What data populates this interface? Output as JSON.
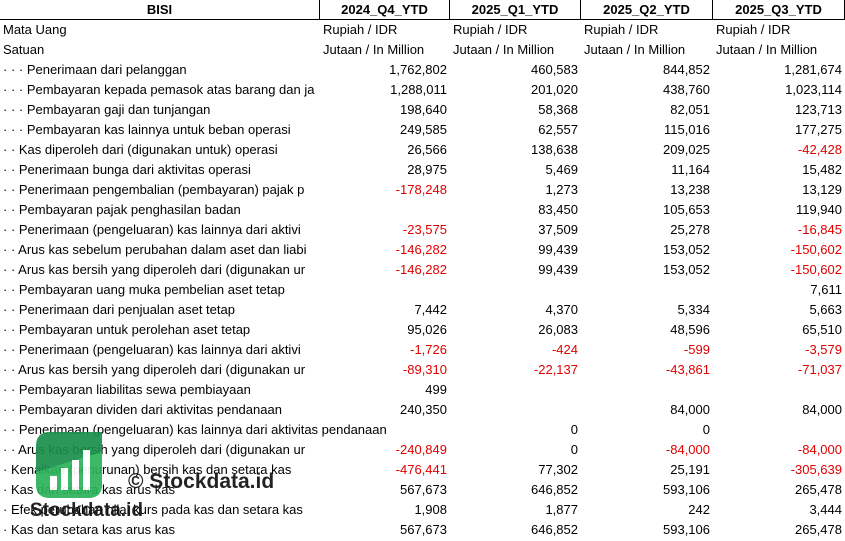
{
  "table": {
    "header": [
      "BISI",
      "2024_Q4_YTD",
      "2025_Q1_YTD",
      "2025_Q2_YTD",
      "2025_Q3_YTD"
    ],
    "meta_rows": [
      [
        "Mata Uang",
        "Rupiah / IDR",
        "Rupiah / IDR",
        "Rupiah / IDR",
        "Rupiah / IDR"
      ],
      [
        "Satuan",
        "Jutaan / In Million",
        "Jutaan / In Million",
        "Jutaan / In Million",
        "Jutaan / In Million"
      ]
    ],
    "rows": [
      [
        "· · · Penerimaan dari pelanggan",
        "1,762,802",
        "460,583",
        "844,852",
        "1,281,674"
      ],
      [
        "· · · Pembayaran kepada pemasok atas barang dan ja",
        "1,288,011",
        "201,020",
        "438,760",
        "1,023,114"
      ],
      [
        "· · · Pembayaran gaji dan tunjangan",
        "198,640",
        "58,368",
        "82,051",
        "123,713"
      ],
      [
        "· · · Pembayaran kas lainnya untuk beban operasi",
        "249,585",
        "62,557",
        "115,016",
        "177,275"
      ],
      [
        "· · Kas diperoleh dari (digunakan untuk) operasi",
        "26,566",
        "138,638",
        "209,025",
        "-42,428"
      ],
      [
        "· · Penerimaan bunga dari aktivitas operasi",
        "28,975",
        "5,469",
        "11,164",
        "15,482"
      ],
      [
        "· · Penerimaan pengembalian (pembayaran) pajak p",
        "-178,248",
        "1,273",
        "13,238",
        "13,129"
      ],
      [
        "· · Pembayaran pajak penghasilan badan",
        null,
        "83,450",
        "105,653",
        "119,940"
      ],
      [
        "· · Penerimaan (pengeluaran) kas lainnya dari aktivi",
        "-23,575",
        "37,509",
        "25,278",
        "-16,845"
      ],
      [
        "· · Arus kas sebelum perubahan dalam aset dan liabi",
        "-146,282",
        "99,439",
        "153,052",
        "-150,602"
      ],
      [
        "· · Arus kas bersih yang diperoleh dari (digunakan ur",
        "-146,282",
        "99,439",
        "153,052",
        "-150,602"
      ],
      [
        "· · Pembayaran uang muka pembelian aset tetap",
        null,
        null,
        null,
        "7,611"
      ],
      [
        "· · Penerimaan dari penjualan aset tetap",
        "7,442",
        "4,370",
        "5,334",
        "5,663"
      ],
      [
        "· · Pembayaran untuk perolehan aset tetap",
        "95,026",
        "26,083",
        "48,596",
        "65,510"
      ],
      [
        "· · Penerimaan (pengeluaran) kas lainnya dari aktivi",
        "-1,726",
        "-424",
        "-599",
        "-3,579"
      ],
      [
        "· · Arus kas bersih yang diperoleh dari (digunakan ur",
        "-89,310",
        "-22,137",
        "-43,861",
        "-71,037"
      ],
      [
        "· · Pembayaran liabilitas sewa pembiayaan",
        "499",
        null,
        null,
        null
      ],
      [
        "· · Pembayaran dividen dari aktivitas pendanaan",
        "240,350",
        null,
        "84,000",
        "84,000"
      ],
      [
        "· · Penerimaan (pengeluaran) kas lainnya dari aktivitas pendanaan",
        null,
        "0",
        "0",
        null
      ],
      [
        "· · Arus kas bersih yang diperoleh dari (digunakan ur",
        "-240,849",
        "0",
        "-84,000",
        "-84,000"
      ],
      [
        "· Kenaikan (penurunan) bersih kas dan setara kas",
        "-476,441",
        "77,302",
        "25,191",
        "-305,639"
      ],
      [
        "· Kas dan setara kas arus kas",
        "567,673",
        "646,852",
        "593,106",
        "265,478"
      ],
      [
        "· Efek perubahan nilai kurs pada kas dan setara kas",
        "1,908",
        "1,877",
        "242",
        "3,444"
      ],
      [
        "· Kas dan setara kas arus kas",
        "567,673",
        "646,852",
        "593,106",
        "265,478"
      ]
    ]
  },
  "watermark": {
    "copyright": "© Stockdata.id",
    "brand": "Stockdata.id"
  }
}
